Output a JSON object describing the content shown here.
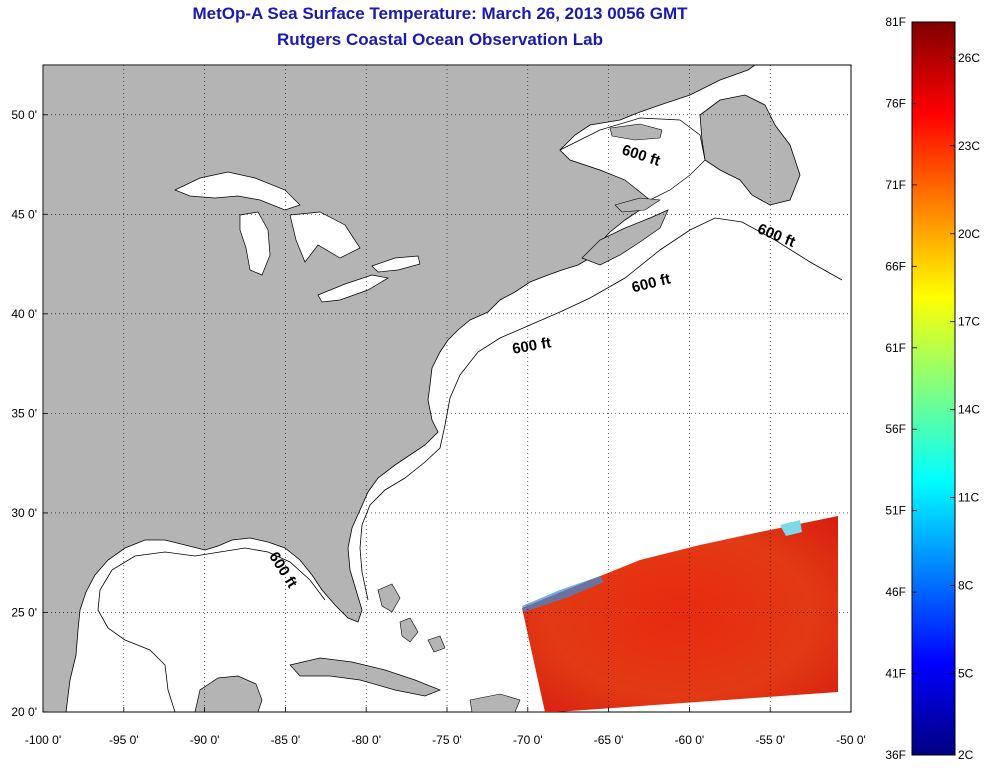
{
  "title": "MetOp-A Sea Surface Temperature:  March 26, 2013 0056 GMT",
  "subtitle": "Rutgers Coastal Ocean Observation Lab",
  "map": {
    "lon_range": [
      -100,
      -50
    ],
    "lat_range": [
      20,
      52.5
    ],
    "x_ticks": [
      "-100 0'",
      "-95 0'",
      "-90 0'",
      "-85 0'",
      "-80 0'",
      "-75 0'",
      "-70 0'",
      "-65 0'",
      "-60 0'",
      "-55 0'",
      "-50 0'"
    ],
    "y_ticks": [
      "20 0'",
      "25 0'",
      "30 0'",
      "35 0'",
      "40 0'",
      "45 0'",
      "50 0'"
    ],
    "land_color": "#b4b4b4",
    "ocean_color": "#ffffff",
    "isobath_labels": [
      "600 ft",
      "600 ft",
      "600 ft",
      "600 ft",
      "600 ft"
    ]
  },
  "colorbar": {
    "left_labels": [
      "81F",
      "76F",
      "71F",
      "66F",
      "61F",
      "56F",
      "51F",
      "46F",
      "41F",
      "36F"
    ],
    "right_labels": [
      "26C",
      "23C",
      "20C",
      "17C",
      "14C",
      "11C",
      "8C",
      "5C",
      "2C"
    ],
    "colors_top_to_bottom": [
      "#800000",
      "#ff0000",
      "#ff8000",
      "#ffff00",
      "#80ff80",
      "#00ffff",
      "#0080ff",
      "#0000ff",
      "#000080"
    ]
  }
}
